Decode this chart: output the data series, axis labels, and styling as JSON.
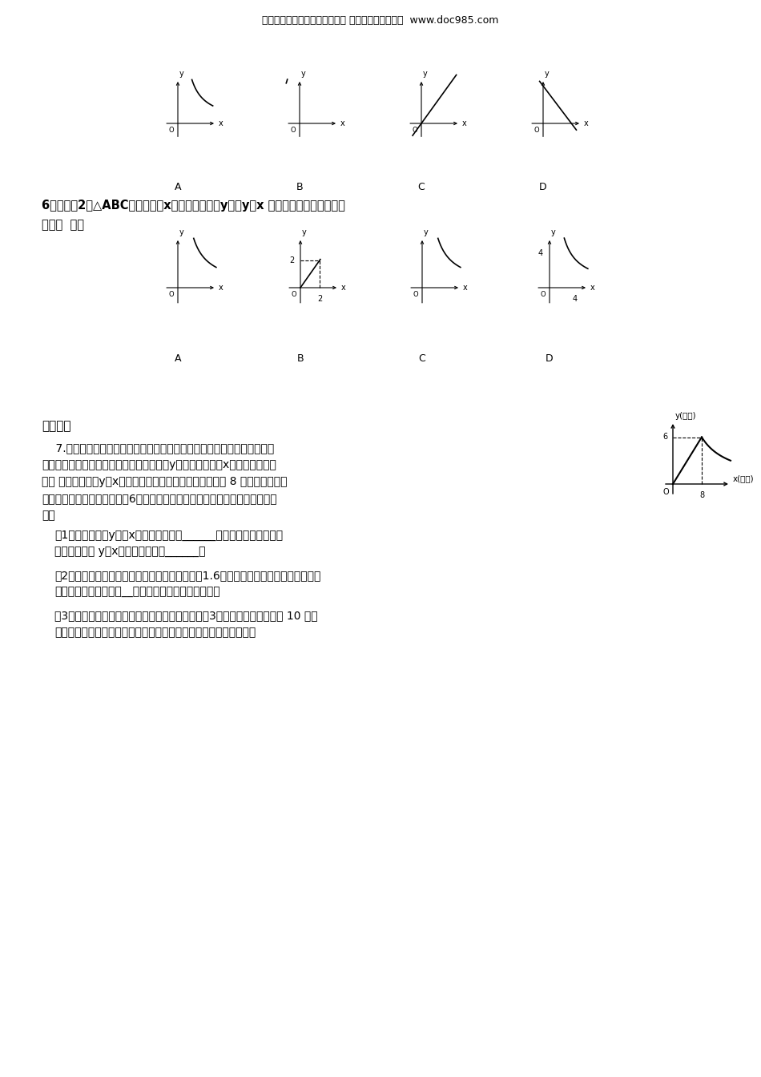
{
  "header_text": "小学、初中、高中各种试卷真题 知识归纳等免费下载  www.doc985.com",
  "q6_line1": "6．面积为2的△ABC，一边长为x，这边上的高为y，则y与x 的变化规律用图象表示大",
  "q6_line2": "致是（  ）．",
  "sec_title": "中考链接",
  "q7_lines": [
    "    7.为了预防流行性感冒，某学校对教室采用药燰消毒法进行消毒．已知，",
    "药物燃烧时，室内每立方米空气中的含药量y（毫克）与时间x（分钟）成正比",
    "例， 药物燃烧后，y与x成反比例（如图所示）．现测得药物 8 分钟燃毕，此室",
    "内空气中每立方米的含药量为6毫克，请你根据题中所提供的信息，解答下列问",
    "题："
  ],
  "sq1_lines": [
    "（1）药物燃烧时y关于x的函数关系式为______，自变量的取値范围是",
    "；药物燃烧后 y与x的函数关系式为______；"
  ],
  "sq2_lines": [
    "（2）研究表明，当空气中每立方米的含药量低于1.6毫克时学生方可进教室，那么从消",
    "毒开始，至少需要经过__分钟后，学生才能回到教室；"
  ],
  "sq3_lines": [
    "（3）研究表明，当空气中每立方米的含药量不低于3毫克且持续时间不低于 10 分钟",
    "时，才能有效杀灰空气中的病菌，那么此次消毒是否有效？为什么？"
  ],
  "bg_color": "#ffffff"
}
